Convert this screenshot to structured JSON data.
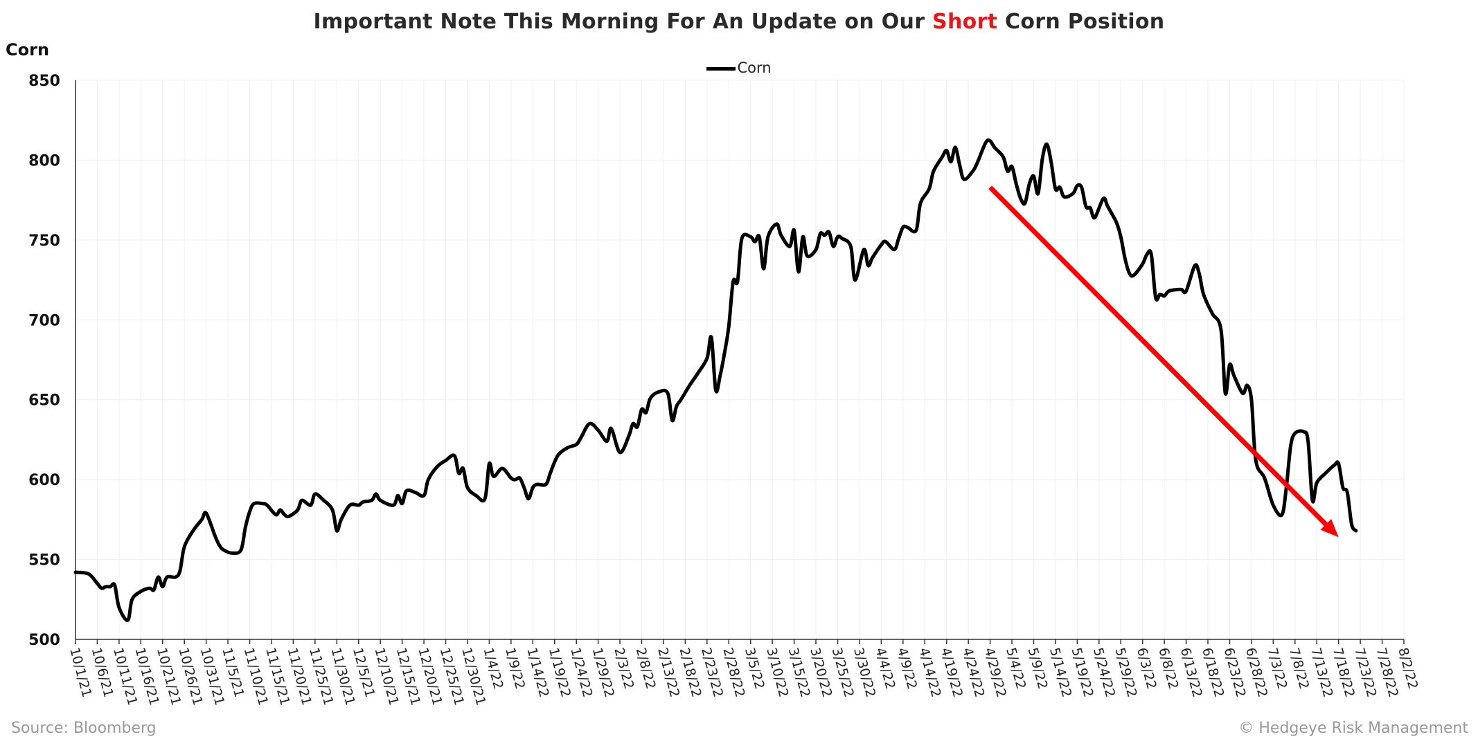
{
  "chart_data": {
    "type": "line",
    "title_parts": [
      "Important Note This Morning For An Update on Our ",
      "Short",
      " Corn Position"
    ],
    "title_highlight_color": "#e8161b",
    "ylabel": "Corn",
    "xlabel": "",
    "ylim": [
      500,
      850
    ],
    "yticks": [
      "500",
      "550",
      "600",
      "650",
      "700",
      "750",
      "800",
      "850"
    ],
    "grid": true,
    "legend_placement": "top-center",
    "x_ticks": [
      "10/1/21",
      "10/6/21",
      "10/11/21",
      "10/16/21",
      "10/21/21",
      "10/26/21",
      "10/31/21",
      "11/5/21",
      "11/10/21",
      "11/15/21",
      "11/20/21",
      "11/25/21",
      "11/30/21",
      "12/5/21",
      "12/10/21",
      "12/15/21",
      "12/20/21",
      "12/25/21",
      "12/30/21",
      "1/4/22",
      "1/9/22",
      "1/14/22",
      "1/19/22",
      "1/24/22",
      "1/29/22",
      "2/3/22",
      "2/8/22",
      "2/13/22",
      "2/18/22",
      "2/23/22",
      "2/28/22",
      "3/5/22",
      "3/10/22",
      "3/15/22",
      "3/20/22",
      "3/25/22",
      "3/30/22",
      "4/4/22",
      "4/9/22",
      "4/14/22",
      "4/19/22",
      "4/24/22",
      "4/29/22",
      "5/4/22",
      "5/9/22",
      "5/14/22",
      "5/19/22",
      "5/24/22",
      "5/29/22",
      "6/3/22",
      "6/8/22",
      "6/13/22",
      "6/18/22",
      "6/23/22",
      "6/28/22",
      "7/3/22",
      "7/8/22",
      "7/13/22",
      "7/18/22",
      "7/23/22",
      "7/28/22",
      "8/2/22"
    ],
    "series": [
      {
        "name": "Corn",
        "color": "#000000",
        "points": [
          [
            "10/1/21",
            542
          ],
          [
            "10/4/21",
            541
          ],
          [
            "10/6/21",
            535
          ],
          [
            "10/7/21",
            532
          ],
          [
            "10/8/21",
            533
          ],
          [
            "10/9/21",
            533
          ],
          [
            "10/10/21",
            534
          ],
          [
            "10/11/21",
            520
          ],
          [
            "10/13/21",
            512
          ],
          [
            "10/14/21",
            525
          ],
          [
            "10/16/21",
            530
          ],
          [
            "10/18/21",
            532
          ],
          [
            "10/19/21",
            531
          ],
          [
            "10/20/21",
            539
          ],
          [
            "10/21/21",
            533
          ],
          [
            "10/22/21",
            539
          ],
          [
            "10/24/21",
            539
          ],
          [
            "10/25/21",
            543
          ],
          [
            "10/26/21",
            558
          ],
          [
            "10/28/21",
            568
          ],
          [
            "10/30/21",
            575
          ],
          [
            "10/31/21",
            579
          ],
          [
            "11/2/21",
            565
          ],
          [
            "11/3/21",
            559
          ],
          [
            "11/4/21",
            556
          ],
          [
            "11/6/21",
            554
          ],
          [
            "11/8/21",
            556
          ],
          [
            "11/9/21",
            570
          ],
          [
            "11/10/21",
            580
          ],
          [
            "11/11/21",
            585
          ],
          [
            "11/13/21",
            585
          ],
          [
            "11/14/21",
            584
          ],
          [
            "11/16/21",
            578
          ],
          [
            "11/17/21",
            581
          ],
          [
            "11/18/21",
            578
          ],
          [
            "11/19/21",
            577
          ],
          [
            "11/21/21",
            581
          ],
          [
            "11/22/21",
            587
          ],
          [
            "11/24/21",
            584
          ],
          [
            "11/25/21",
            591
          ],
          [
            "11/27/21",
            587
          ],
          [
            "11/29/21",
            581
          ],
          [
            "11/30/21",
            568
          ],
          [
            "12/1/21",
            575
          ],
          [
            "12/3/21",
            584
          ],
          [
            "12/5/21",
            584
          ],
          [
            "12/6/21",
            586
          ],
          [
            "12/8/21",
            587
          ],
          [
            "12/9/21",
            591
          ],
          [
            "12/10/21",
            587
          ],
          [
            "12/13/21",
            584
          ],
          [
            "12/14/21",
            590
          ],
          [
            "12/15/21",
            585
          ],
          [
            "12/16/21",
            593
          ],
          [
            "12/18/21",
            592
          ],
          [
            "12/20/21",
            590
          ],
          [
            "12/21/21",
            600
          ],
          [
            "12/23/21",
            608
          ],
          [
            "12/25/21",
            612
          ],
          [
            "12/27/21",
            615
          ],
          [
            "12/28/21",
            604
          ],
          [
            "12/29/21",
            607
          ],
          [
            "12/30/21",
            595
          ],
          [
            "1/1/22",
            590
          ],
          [
            "1/3/22",
            588
          ],
          [
            "1/4/22",
            610
          ],
          [
            "1/5/22",
            602
          ],
          [
            "1/7/22",
            607
          ],
          [
            "1/9/22",
            601
          ],
          [
            "1/10/22",
            600
          ],
          [
            "1/11/22",
            601
          ],
          [
            "1/12/22",
            595
          ],
          [
            "1/13/22",
            588
          ],
          [
            "1/14/22",
            595
          ],
          [
            "1/15/22",
            597
          ],
          [
            "1/17/22",
            597
          ],
          [
            "1/18/22",
            604
          ],
          [
            "1/19/22",
            611
          ],
          [
            "1/20/22",
            616
          ],
          [
            "1/22/22",
            620
          ],
          [
            "1/24/22",
            622
          ],
          [
            "1/25/22",
            626
          ],
          [
            "1/27/22",
            635
          ],
          [
            "1/29/22",
            631
          ],
          [
            "1/31/22",
            624
          ],
          [
            "2/1/22",
            632
          ],
          [
            "2/3/22",
            617
          ],
          [
            "2/5/22",
            627
          ],
          [
            "2/6/22",
            635
          ],
          [
            "2/7/22",
            633
          ],
          [
            "2/8/22",
            644
          ],
          [
            "2/9/22",
            642
          ],
          [
            "2/10/22",
            651
          ],
          [
            "2/12/22",
            655
          ],
          [
            "2/14/22",
            654
          ],
          [
            "2/15/22",
            637
          ],
          [
            "2/16/22",
            646
          ],
          [
            "2/17/22",
            650
          ],
          [
            "2/19/22",
            659
          ],
          [
            "2/21/22",
            667
          ],
          [
            "2/23/22",
            676
          ],
          [
            "2/24/22",
            689
          ],
          [
            "2/25/22",
            656
          ],
          [
            "2/26/22",
            665
          ],
          [
            "2/27/22",
            679
          ],
          [
            "2/28/22",
            696
          ],
          [
            "3/1/22",
            724
          ],
          [
            "3/2/22",
            724
          ],
          [
            "3/3/22",
            751
          ],
          [
            "3/5/22",
            752
          ],
          [
            "3/6/22",
            749
          ],
          [
            "3/7/22",
            752
          ],
          [
            "3/8/22",
            732
          ],
          [
            "3/9/22",
            752
          ],
          [
            "3/11/22",
            760
          ],
          [
            "3/12/22",
            753
          ],
          [
            "3/14/22",
            746
          ],
          [
            "3/15/22",
            756
          ],
          [
            "3/16/22",
            730
          ],
          [
            "3/17/22",
            752
          ],
          [
            "3/18/22",
            740
          ],
          [
            "3/20/22",
            744
          ],
          [
            "3/21/22",
            754
          ],
          [
            "3/22/22",
            753
          ],
          [
            "3/23/22",
            755
          ],
          [
            "3/24/22",
            746
          ],
          [
            "3/25/22",
            752
          ],
          [
            "3/26/22",
            751
          ],
          [
            "3/28/22",
            746
          ],
          [
            "3/29/22",
            725
          ],
          [
            "3/31/22",
            744
          ],
          [
            "4/1/22",
            734
          ],
          [
            "4/2/22",
            739
          ],
          [
            "4/4/22",
            747
          ],
          [
            "4/5/22",
            749
          ],
          [
            "4/7/22",
            744
          ],
          [
            "4/8/22",
            751
          ],
          [
            "4/9/22",
            758
          ],
          [
            "4/10/22",
            758
          ],
          [
            "4/12/22",
            756
          ],
          [
            "4/13/22",
            773
          ],
          [
            "4/15/22",
            782
          ],
          [
            "4/16/22",
            793
          ],
          [
            "4/18/22",
            802
          ],
          [
            "4/19/22",
            806
          ],
          [
            "4/20/22",
            799
          ],
          [
            "4/21/22",
            808
          ],
          [
            "4/22/22",
            797
          ],
          [
            "4/23/22",
            788
          ],
          [
            "4/25/22",
            793
          ],
          [
            "4/26/22",
            798
          ],
          [
            "4/28/22",
            811
          ],
          [
            "4/29/22",
            812
          ],
          [
            "4/30/22",
            808
          ],
          [
            "5/2/22",
            802
          ],
          [
            "5/3/22",
            793
          ],
          [
            "5/4/22",
            796
          ],
          [
            "5/5/22",
            785
          ],
          [
            "5/6/22",
            776
          ],
          [
            "5/7/22",
            773
          ],
          [
            "5/8/22",
            785
          ],
          [
            "5/9/22",
            790
          ],
          [
            "5/10/22",
            779
          ],
          [
            "5/11/22",
            801
          ],
          [
            "5/12/22",
            810
          ],
          [
            "5/13/22",
            799
          ],
          [
            "5/14/22",
            782
          ],
          [
            "5/15/22",
            783
          ],
          [
            "5/16/22",
            777
          ],
          [
            "5/18/22",
            779
          ],
          [
            "5/19/22",
            784
          ],
          [
            "5/20/22",
            783
          ],
          [
            "5/21/22",
            771
          ],
          [
            "5/22/22",
            770
          ],
          [
            "5/23/22",
            764
          ],
          [
            "5/25/22",
            776
          ],
          [
            "5/26/22",
            771
          ],
          [
            "5/28/22",
            761
          ],
          [
            "5/29/22",
            752
          ],
          [
            "5/30/22",
            738
          ],
          [
            "5/31/22",
            729
          ],
          [
            "6/1/22",
            728
          ],
          [
            "6/3/22",
            735
          ],
          [
            "6/4/22",
            741
          ],
          [
            "6/5/22",
            741
          ],
          [
            "6/6/22",
            714
          ],
          [
            "6/7/22",
            716
          ],
          [
            "6/8/22",
            715
          ],
          [
            "6/9/22",
            718
          ],
          [
            "6/11/22",
            719
          ],
          [
            "6/12/22",
            719
          ],
          [
            "6/13/22",
            718
          ],
          [
            "6/15/22",
            734
          ],
          [
            "6/16/22",
            729
          ],
          [
            "6/17/22",
            716
          ],
          [
            "6/19/22",
            704
          ],
          [
            "6/21/22",
            694
          ],
          [
            "6/22/22",
            654
          ],
          [
            "6/23/22",
            672
          ],
          [
            "6/24/22",
            665
          ],
          [
            "6/26/22",
            654
          ],
          [
            "6/27/22",
            659
          ],
          [
            "6/28/22",
            650
          ],
          [
            "6/29/22",
            612
          ],
          [
            "7/1/22",
            601
          ],
          [
            "7/3/22",
            584
          ],
          [
            "7/5/22",
            578
          ],
          [
            "7/6/22",
            595
          ],
          [
            "7/7/22",
            621
          ],
          [
            "7/8/22",
            629
          ],
          [
            "7/10/22",
            630
          ],
          [
            "7/11/22",
            624
          ],
          [
            "7/12/22",
            587
          ],
          [
            "7/13/22",
            598
          ],
          [
            "7/15/22",
            604
          ],
          [
            "7/17/22",
            609
          ],
          [
            "7/18/22",
            610
          ],
          [
            "7/19/22",
            595
          ],
          [
            "7/20/22",
            592
          ],
          [
            "7/21/22",
            572
          ],
          [
            "7/22/22",
            568
          ]
        ]
      }
    ],
    "annotations": [
      {
        "type": "arrow",
        "color": "#ff0000",
        "from": [
          "4/29/22",
          783
        ],
        "to": [
          "7/18/22",
          564
        ]
      }
    ]
  },
  "footer": {
    "source": "Source: Bloomberg",
    "copyright": "© Hedgeye Risk Management"
  }
}
